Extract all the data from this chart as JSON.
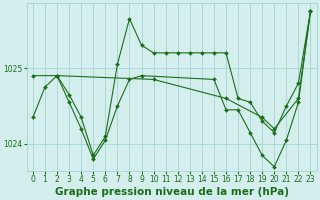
{
  "title": "Graphe pression niveau de la mer (hPa)",
  "background_color": "#d4eeee",
  "grid_color": "#9ecece",
  "line_color": "#1a6e1a",
  "marker_color": "#1a6e1a",
  "xlim": [
    -0.5,
    23.5
  ],
  "ylim": [
    1023.65,
    1025.85
  ],
  "yticks": [
    1024,
    1025
  ],
  "xticks": [
    0,
    1,
    2,
    3,
    4,
    5,
    6,
    7,
    8,
    9,
    10,
    11,
    12,
    13,
    14,
    15,
    16,
    17,
    18,
    19,
    20,
    21,
    22,
    23
  ],
  "series": [
    {
      "x": [
        0,
        1,
        2,
        3,
        4,
        5,
        6,
        7,
        8,
        9,
        10,
        11,
        12,
        13,
        14,
        15,
        16,
        17,
        18,
        19,
        20,
        21,
        22,
        23
      ],
      "y": [
        1024.35,
        1024.75,
        1024.9,
        1024.65,
        1024.35,
        1023.85,
        1024.1,
        1025.05,
        1025.65,
        1025.3,
        1025.2,
        1025.2,
        1025.2,
        1025.2,
        1025.2,
        1025.2,
        1025.2,
        1024.6,
        1024.55,
        1024.3,
        1024.15,
        1024.5,
        1024.8,
        1025.75
      ]
    },
    {
      "x": [
        0,
        2,
        10,
        16,
        19,
        20,
        22,
        23
      ],
      "y": [
        1024.9,
        1024.9,
        1024.85,
        1024.6,
        1024.35,
        1024.2,
        1024.6,
        1025.75
      ]
    },
    {
      "x": [
        2,
        3,
        4,
        5,
        6,
        7,
        8,
        9,
        15,
        16,
        17,
        18,
        19,
        20,
        21,
        22,
        23
      ],
      "y": [
        1024.9,
        1024.55,
        1024.2,
        1023.8,
        1024.05,
        1024.5,
        1024.85,
        1024.9,
        1024.85,
        1024.45,
        1024.45,
        1024.15,
        1023.85,
        1023.7,
        1024.05,
        1024.55,
        1025.75
      ]
    }
  ],
  "title_fontsize": 7.5,
  "tick_fontsize": 5.5,
  "linewidth": 0.8,
  "markersize": 2.0
}
